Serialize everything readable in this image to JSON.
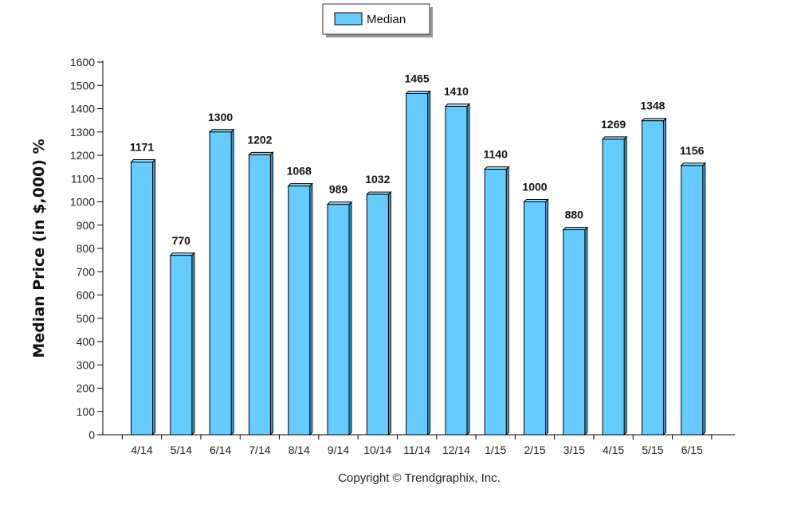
{
  "chart_data": {
    "type": "bar",
    "categories": [
      "4/14",
      "5/14",
      "6/14",
      "7/14",
      "8/14",
      "9/14",
      "10/14",
      "11/14",
      "12/14",
      "1/15",
      "2/15",
      "3/15",
      "4/15",
      "5/15",
      "6/15"
    ],
    "series": [
      {
        "name": "Median",
        "values": [
          1171,
          770,
          1300,
          1202,
          1068,
          989,
          1032,
          1465,
          1410,
          1140,
          1000,
          880,
          1269,
          1348,
          1156
        ]
      }
    ],
    "title": "",
    "xlabel": "",
    "ylabel": "Median Price (in $,000) %",
    "ylim": [
      0,
      1600
    ],
    "yticks": [
      0,
      100,
      200,
      300,
      400,
      500,
      600,
      700,
      800,
      900,
      1000,
      1100,
      1200,
      1300,
      1400,
      1500,
      1600
    ],
    "legend": {
      "position": "top-center",
      "entries": [
        "Median"
      ]
    },
    "grid": false,
    "bar_color": "#66ccff",
    "bar_stroke": "#000000",
    "data_labels": true
  },
  "footer": {
    "copyright": "Copyright © Trendgraphix, Inc."
  }
}
